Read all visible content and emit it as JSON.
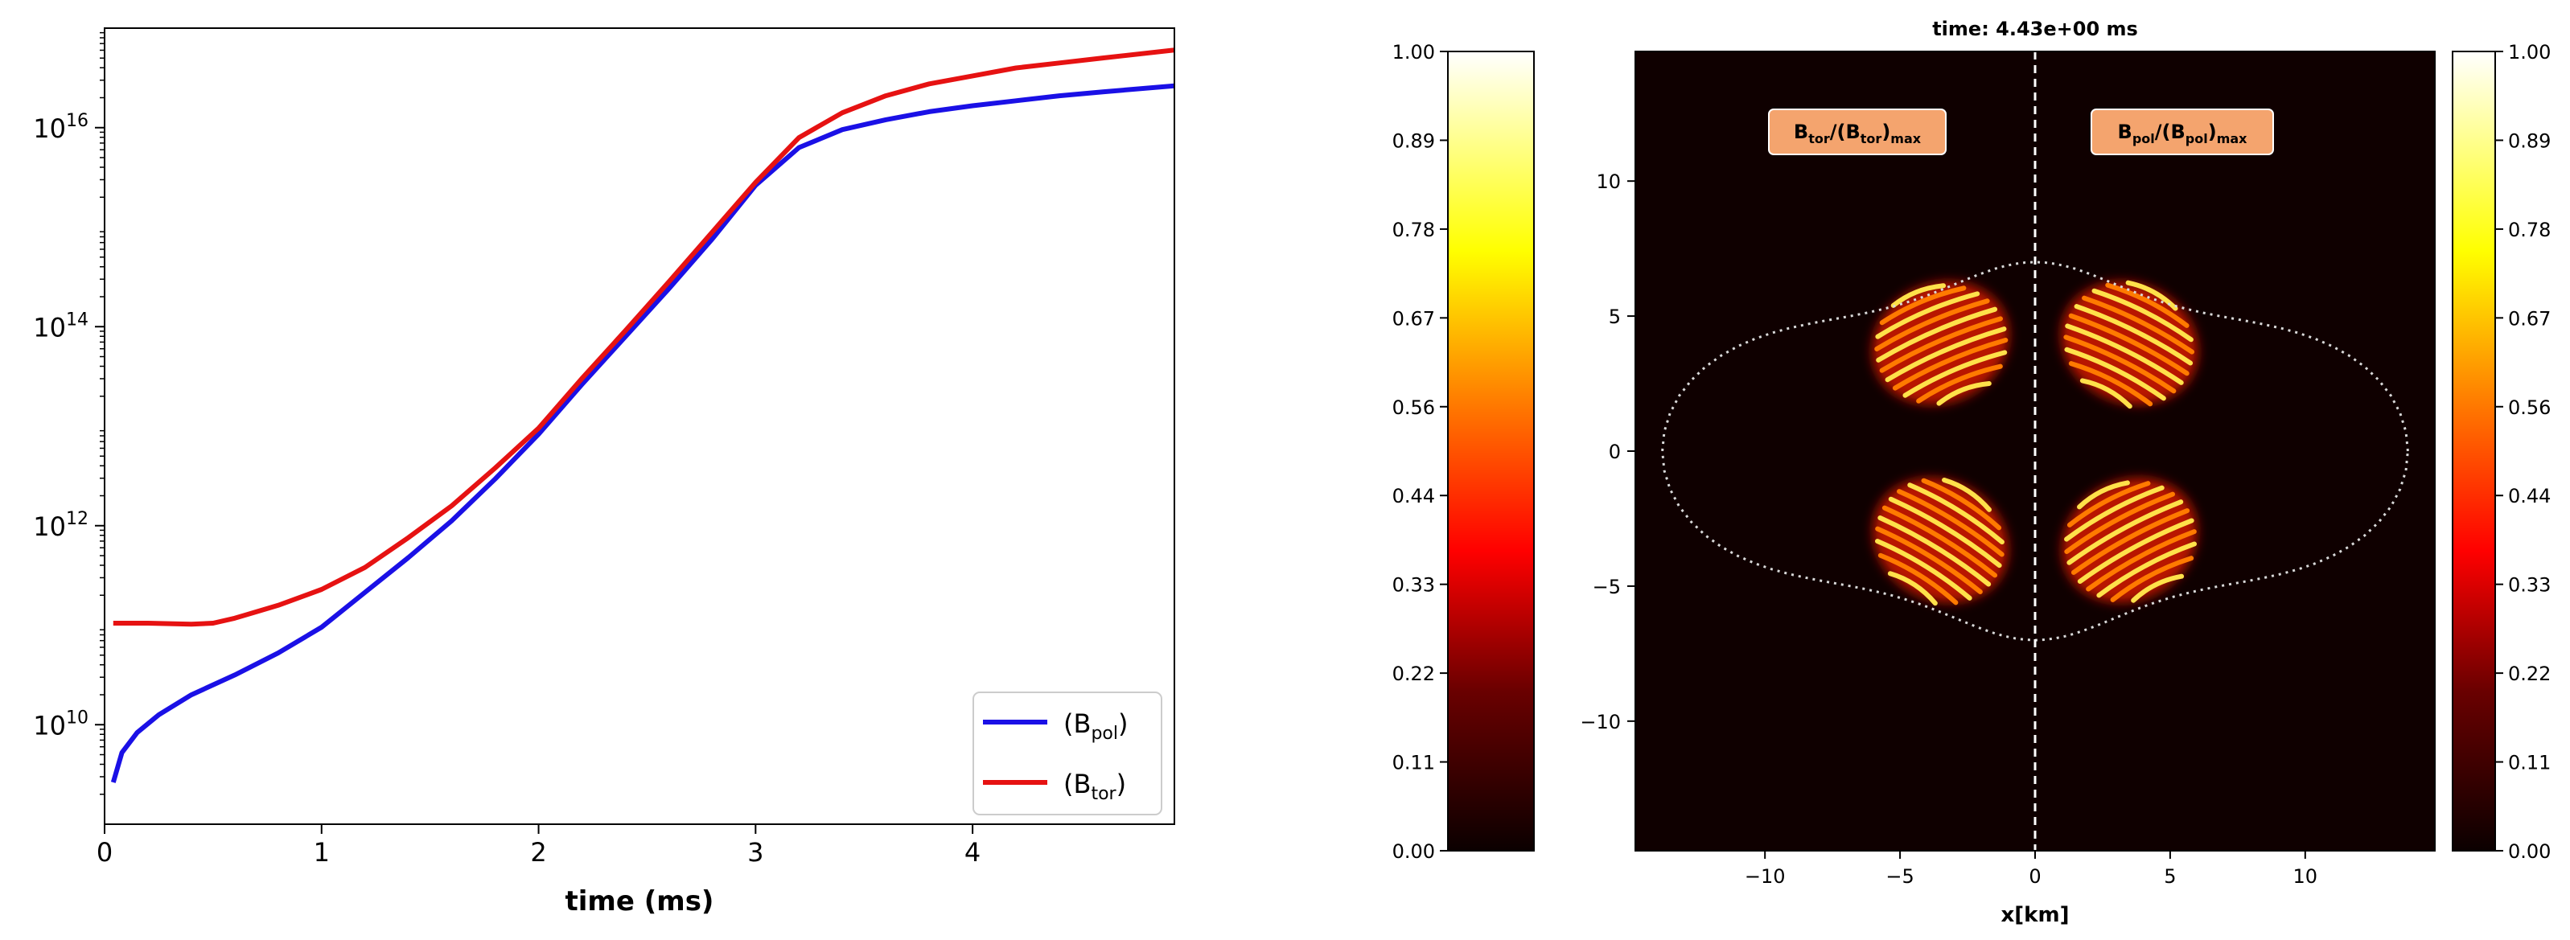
{
  "chart_data": [
    {
      "type": "line",
      "title": "",
      "xlabel": "time (ms)",
      "ylabel": "",
      "yscale": "log",
      "xlim": [
        0,
        4.93
      ],
      "ylim_log10": [
        9.0,
        17.0
      ],
      "xticks": [
        {
          "v": 0,
          "label": "0"
        },
        {
          "v": 1,
          "label": "1"
        },
        {
          "v": 2,
          "label": "2"
        },
        {
          "v": 3,
          "label": "3"
        },
        {
          "v": 4,
          "label": "4"
        }
      ],
      "yticks": [
        {
          "exp": 10,
          "base": "10",
          "sup": "10"
        },
        {
          "exp": 12,
          "base": "10",
          "sup": "12"
        },
        {
          "exp": 14,
          "base": "10",
          "sup": "14"
        },
        {
          "exp": 16,
          "base": "10",
          "sup": "16"
        }
      ],
      "legend": {
        "placement": "lower-right",
        "entries": [
          {
            "name": "⟨Bpol⟩",
            "base": "(B",
            "sub": "pol",
            "close": ")",
            "color": "#1a10e6"
          },
          {
            "name": "⟨Btor⟩",
            "base": "(B",
            "sub": "tor",
            "close": ")",
            "color": "#e61212"
          }
        ]
      },
      "series": [
        {
          "name": "⟨Bpol⟩",
          "color": "#1a10e6",
          "x": [
            0.04,
            0.08,
            0.15,
            0.25,
            0.4,
            0.6,
            0.8,
            1.0,
            1.2,
            1.4,
            1.6,
            1.8,
            2.0,
            2.2,
            2.4,
            2.6,
            2.8,
            3.0,
            3.2,
            3.4,
            3.6,
            3.8,
            4.0,
            4.2,
            4.4,
            4.6,
            4.93
          ],
          "y_log10": [
            9.42,
            9.72,
            9.92,
            10.1,
            10.3,
            10.5,
            10.72,
            10.98,
            11.33,
            11.68,
            12.05,
            12.47,
            12.92,
            13.42,
            13.9,
            14.38,
            14.88,
            15.42,
            15.8,
            15.98,
            16.08,
            16.16,
            16.22,
            16.27,
            16.32,
            16.36,
            16.42
          ]
        },
        {
          "name": "⟨Btor⟩",
          "color": "#e61212",
          "x": [
            0.04,
            0.2,
            0.4,
            0.5,
            0.6,
            0.8,
            1.0,
            1.2,
            1.4,
            1.6,
            1.8,
            2.0,
            2.2,
            2.4,
            2.6,
            2.8,
            3.0,
            3.2,
            3.4,
            3.6,
            3.8,
            4.0,
            4.2,
            4.4,
            4.6,
            4.93
          ],
          "y_log10": [
            11.02,
            11.02,
            11.01,
            11.02,
            11.07,
            11.2,
            11.36,
            11.58,
            11.88,
            12.2,
            12.58,
            12.98,
            13.48,
            13.96,
            14.45,
            14.95,
            15.45,
            15.9,
            16.15,
            16.32,
            16.44,
            16.52,
            16.6,
            16.65,
            16.7,
            16.78
          ]
        }
      ]
    },
    {
      "type": "heatmap",
      "title": "time: 4.43e+00 ms",
      "xlabel": "x[km]",
      "ylabel": "",
      "xlim": [
        -14.8,
        14.8
      ],
      "ylim": [
        -14.8,
        14.8
      ],
      "xticks": [
        {
          "v": -10,
          "label": "−10"
        },
        {
          "v": -5,
          "label": "−5"
        },
        {
          "v": 0,
          "label": "0"
        },
        {
          "v": 5,
          "label": "5"
        },
        {
          "v": 10,
          "label": "10"
        }
      ],
      "yticks": [
        {
          "v": 10,
          "label": "10"
        },
        {
          "v": 5,
          "label": "5"
        },
        {
          "v": 0,
          "label": "0"
        },
        {
          "v": -5,
          "label": "−5"
        },
        {
          "v": -10,
          "label": "−10"
        }
      ],
      "colormap": "hot",
      "background_color": "#0f0000",
      "annotations": [
        {
          "side": "left",
          "text": "Btor/(Btor)max",
          "num": "B",
          "num_sub": "tor",
          "den_open": "/(B",
          "den_sub": "tor",
          "den_close": ")",
          "den_sub2": "max",
          "box_color": "#f4a46e"
        },
        {
          "side": "right",
          "text": "Bpol/(Bpol)max",
          "num": "B",
          "num_sub": "pol",
          "den_open": "/(B",
          "den_sub": "pol",
          "den_close": ")",
          "den_sub2": "max",
          "box_color": "#f4a46e"
        }
      ],
      "colorbars": [
        {
          "side": "left",
          "range": [
            0.0,
            1.0
          ],
          "ticks": [
            "1.00",
            "0.89",
            "0.78",
            "0.67",
            "0.56",
            "0.44",
            "0.33",
            "0.22",
            "0.11",
            "0.00"
          ]
        },
        {
          "side": "right",
          "range": [
            0.0,
            1.0
          ],
          "ticks": [
            "1.00",
            "0.89",
            "0.78",
            "0.67",
            "0.56",
            "0.44",
            "0.33",
            "0.22",
            "0.11",
            "0.00"
          ]
        }
      ],
      "star_boundary": {
        "equatorial_radius_km": 13.8,
        "polar_radius_km": 7.0
      },
      "field_blobs": [
        {
          "field": "Btor",
          "center_km": [
            -3.5,
            4.0
          ],
          "tilt_deg": -25
        },
        {
          "field": "Btor",
          "center_km": [
            -3.5,
            -3.3
          ],
          "tilt_deg": 30
        },
        {
          "field": "Bpol",
          "center_km": [
            3.5,
            4.0
          ],
          "tilt_deg": 25
        },
        {
          "field": "Bpol",
          "center_km": [
            3.5,
            -3.3
          ],
          "tilt_deg": -30
        }
      ]
    }
  ]
}
